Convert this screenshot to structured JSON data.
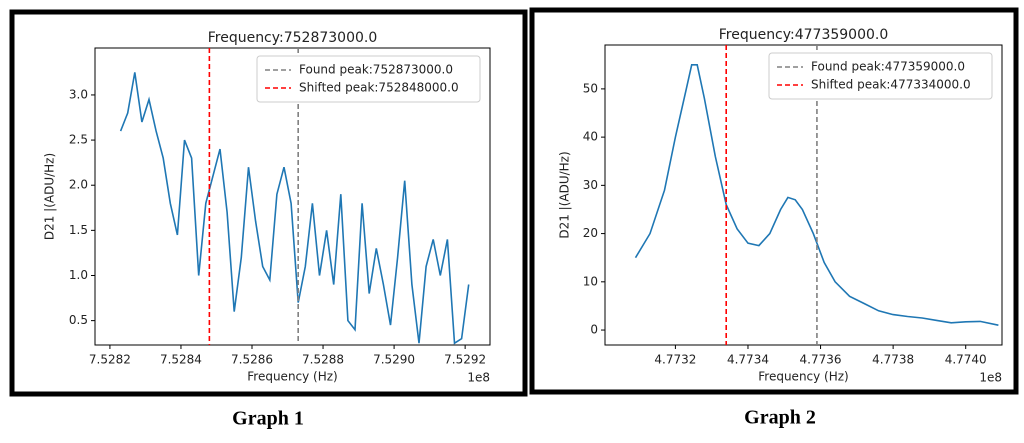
{
  "chart_data": [
    {
      "type": "line",
      "title": "Frequency:752873000.0",
      "xlabel": "Frequency (Hz)",
      "ylabel": "D21 |(ADU/Hz)",
      "x_offset_label": "1e8",
      "caption": "Graph 1",
      "color": "#1f77b4",
      "x": [
        752823000,
        752825000,
        752827000,
        752829000,
        752831000,
        752833000,
        752835000,
        752837000,
        752839000,
        752841000,
        752843000,
        752845000,
        752847000,
        752849000,
        752851000,
        752853000,
        752855000,
        752857000,
        752859000,
        752861000,
        752863000,
        752865000,
        752867000,
        752869000,
        752871000,
        752873000,
        752875000,
        752877000,
        752879000,
        752881000,
        752883000,
        752885000,
        752887000,
        752889000,
        752891000,
        752893000,
        752895000,
        752897000,
        752899000,
        752901000,
        752903000,
        752905000,
        752907000,
        752909000,
        752911000,
        752913000,
        752915000,
        752917000,
        752919000,
        752921000
      ],
      "values": [
        2.6,
        2.8,
        3.25,
        2.7,
        2.95,
        2.6,
        2.3,
        1.8,
        1.45,
        2.5,
        2.3,
        1.0,
        1.8,
        2.1,
        2.4,
        1.7,
        0.6,
        1.2,
        2.2,
        1.6,
        1.1,
        0.95,
        1.9,
        2.2,
        1.8,
        0.7,
        1.1,
        1.8,
        1.0,
        1.5,
        0.9,
        1.9,
        0.5,
        0.4,
        1.8,
        0.8,
        1.3,
        0.9,
        0.45,
        1.2,
        2.05,
        0.9,
        0.25,
        1.1,
        1.4,
        1.0,
        1.4,
        0.25,
        0.3,
        0.9
      ],
      "vlines": [
        {
          "name": "Found peak:752873000.0",
          "x": 752873000,
          "color": "#808080"
        },
        {
          "name": "Shifted peak:752848000.0",
          "x": 752848000,
          "color": "#ff0000"
        }
      ],
      "xlim": [
        752815800,
        752927000
      ],
      "ylim": [
        0.23,
        3.52
      ],
      "xticks": [
        {
          "value": 752820000,
          "label": "7.5282"
        },
        {
          "value": 752840000,
          "label": "7.5284"
        },
        {
          "value": 752860000,
          "label": "7.5286"
        },
        {
          "value": 752880000,
          "label": "7.5288"
        },
        {
          "value": 752900000,
          "label": "7.5290"
        },
        {
          "value": 752920000,
          "label": "7.5292"
        }
      ],
      "yticks": [
        0.5,
        {
          "value": 1,
          "label": "1.0"
        },
        1.5,
        {
          "value": 2,
          "label": "2.0"
        },
        2.5,
        {
          "value": 3,
          "label": "3.0"
        }
      ],
      "legend": "upper right"
    },
    {
      "type": "line",
      "title": "Frequency:477359000.0",
      "xlabel": "Frequency (Hz)",
      "ylabel": "D21 |(ADU/Hz)",
      "x_offset_label": "1e8",
      "caption": "Graph 2",
      "color": "#1f77b4",
      "x": [
        477309000,
        477313000,
        477317000,
        477320000,
        477323000,
        477324500,
        477326000,
        477328000,
        477331000,
        477334000,
        477337000,
        477340000,
        477343000,
        477346000,
        477349000,
        477351000,
        477353000,
        477355000,
        477358000,
        477361000,
        477364000,
        477368000,
        477372000,
        477376000,
        477380000,
        477384000,
        477388000,
        477392000,
        477396000,
        477400000,
        477404000,
        477409000
      ],
      "values": [
        15,
        20,
        29,
        40,
        50,
        55,
        55,
        48,
        36,
        26,
        21,
        18,
        17.5,
        20,
        25,
        27.5,
        27,
        25,
        20,
        14,
        10,
        7,
        5.5,
        4,
        3.2,
        2.8,
        2.5,
        2,
        1.5,
        1.7,
        1.8,
        1
      ],
      "vlines": [
        {
          "name": "Found peak:477359000.0",
          "x": 477359000,
          "color": "#808080"
        },
        {
          "name": "Shifted peak:477334000.0",
          "x": 477334000,
          "color": "#ff0000"
        }
      ],
      "xlim": [
        477300600,
        477410000
      ],
      "ylim": [
        -3.1,
        59.1
      ],
      "xticks": [
        {
          "value": 477320000,
          "label": "4.7732"
        },
        {
          "value": 477340000,
          "label": "4.7734"
        },
        {
          "value": 477360000,
          "label": "4.7736"
        },
        {
          "value": 477380000,
          "label": "4.7738"
        },
        {
          "value": 477400000,
          "label": "4.7740"
        }
      ],
      "yticks": [
        0,
        10,
        20,
        30,
        40,
        50
      ],
      "legend": "upper right"
    }
  ]
}
